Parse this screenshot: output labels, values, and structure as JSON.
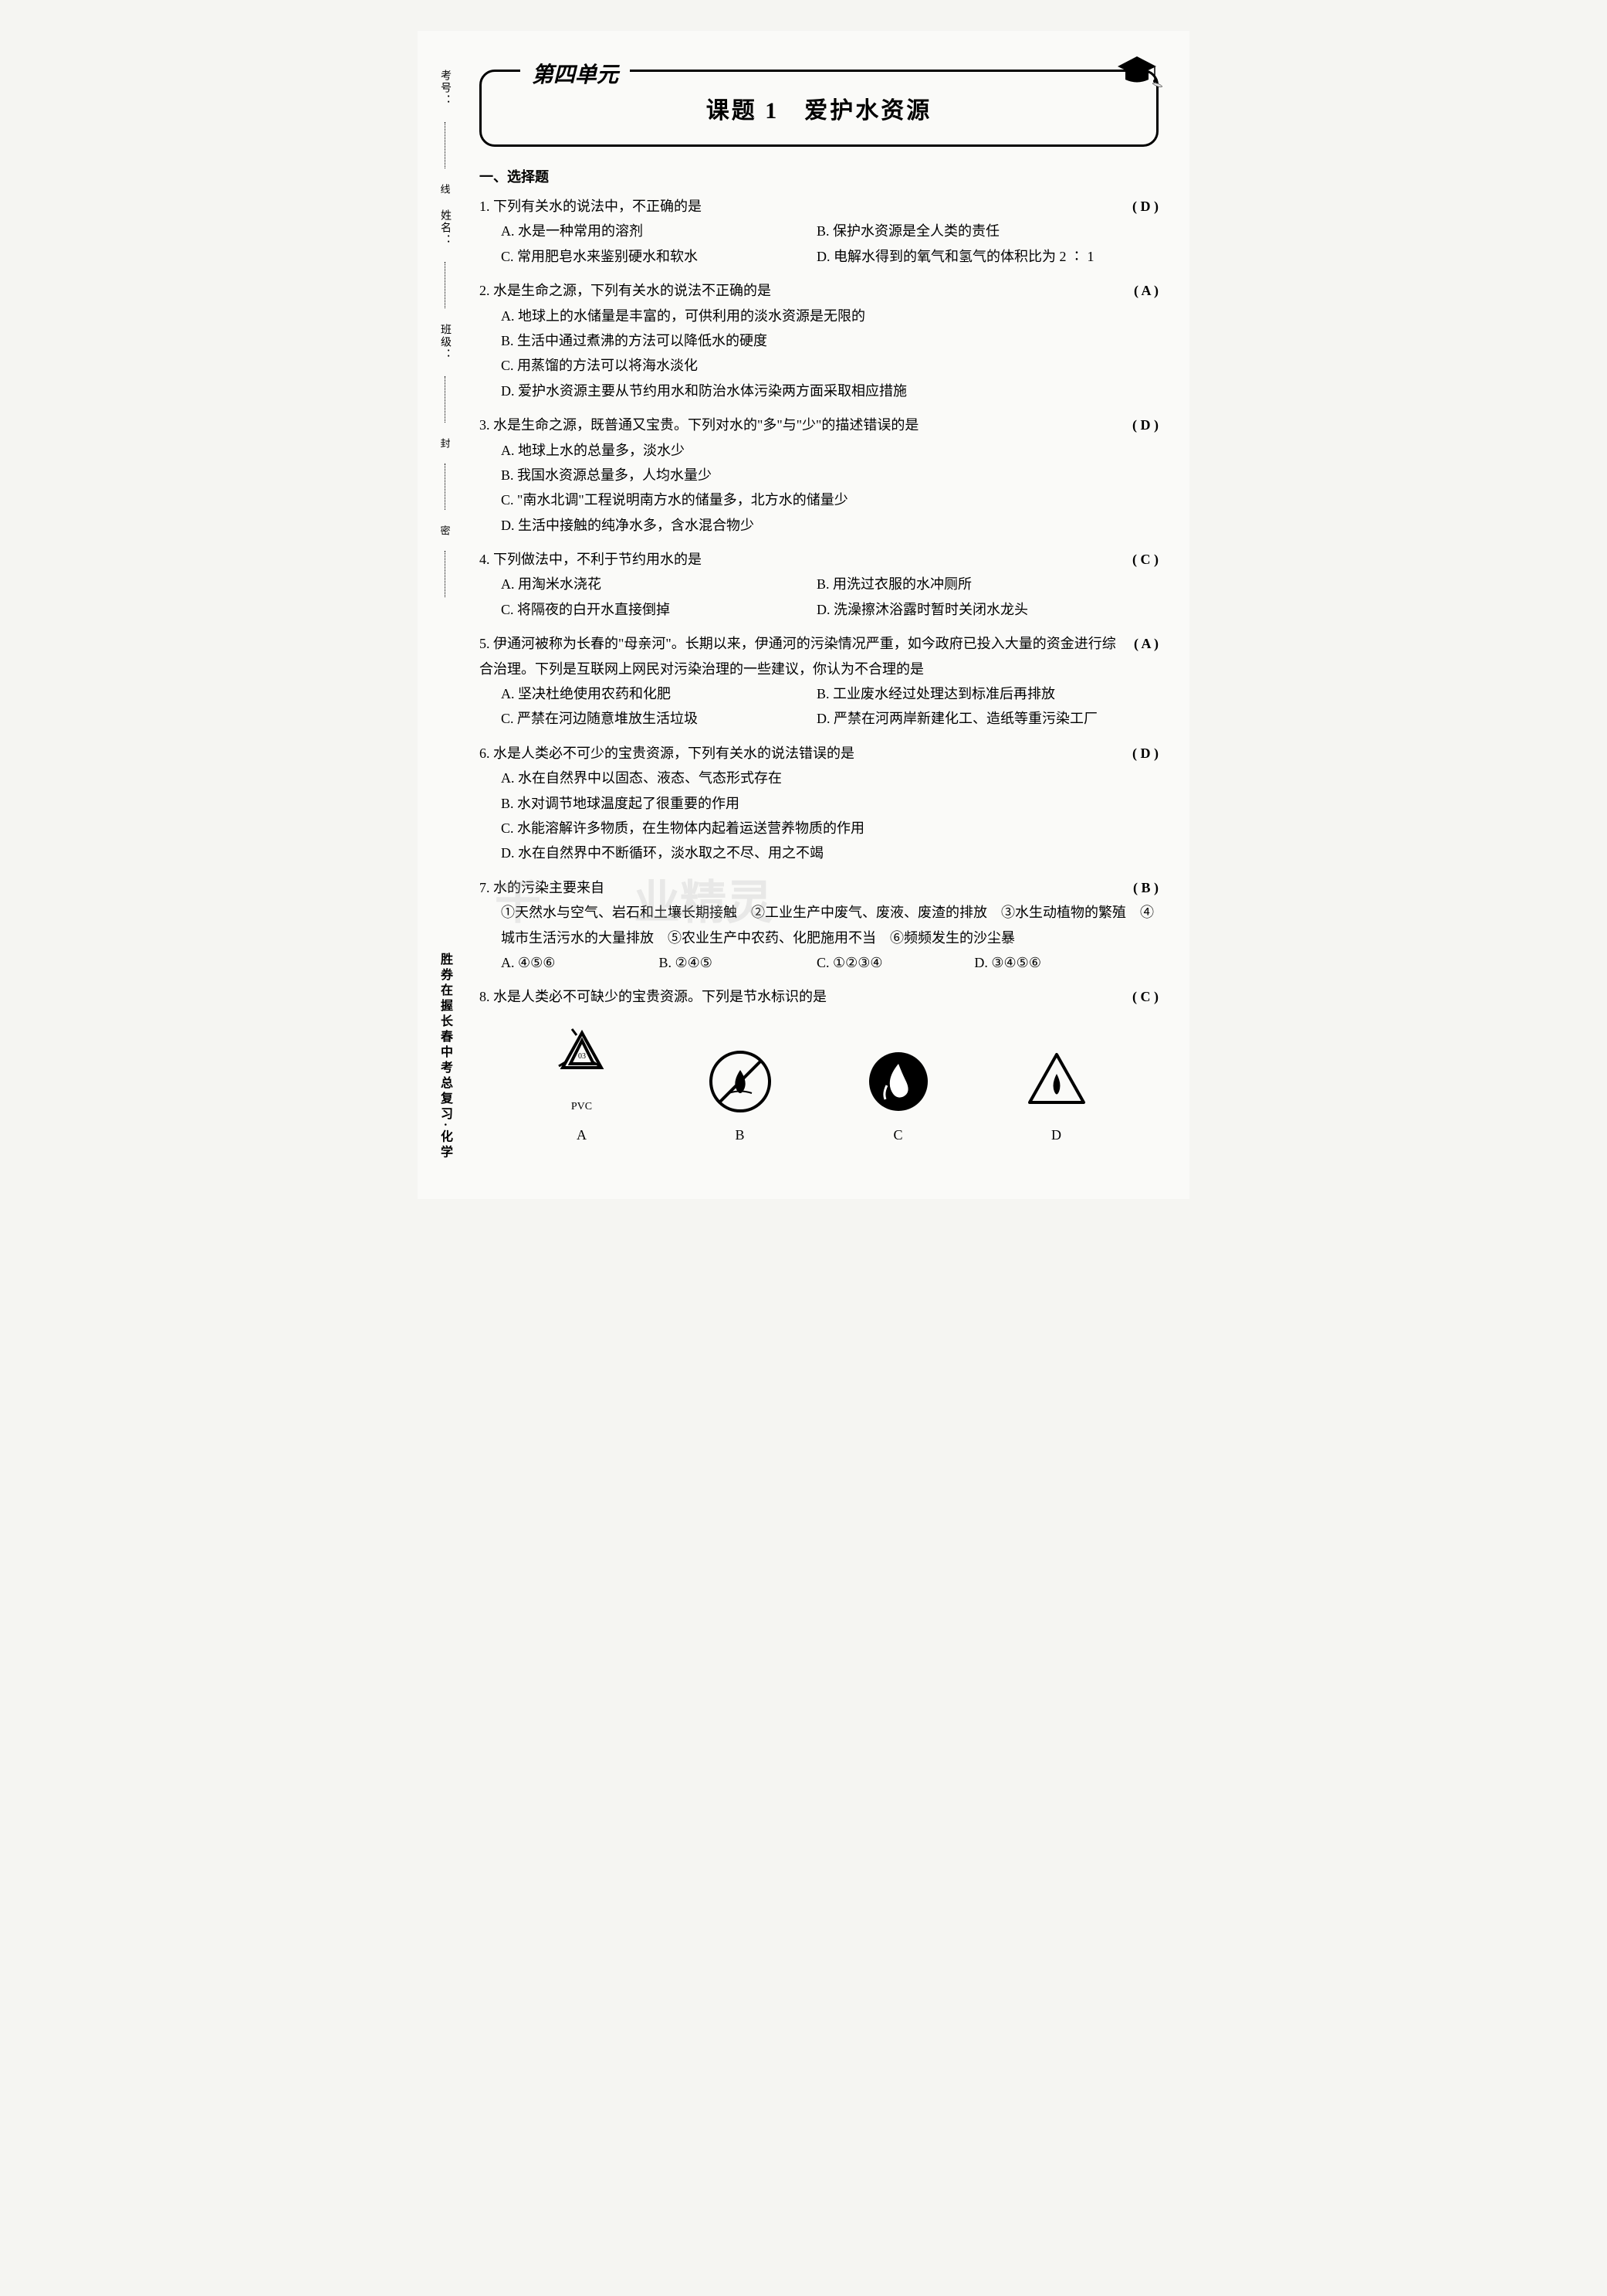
{
  "sidebar": {
    "fields": [
      {
        "label": "考号："
      },
      {
        "label": "姓名："
      },
      {
        "label": "班级："
      }
    ],
    "markers": [
      "线",
      "封",
      "密"
    ],
    "bottom_text": "胜券在握长春中考总复习·化学"
  },
  "header": {
    "unit_label": "第四单元",
    "topic": "课题 1　爱护水资源"
  },
  "section_title": "一、选择题",
  "questions": [
    {
      "num": "1.",
      "stem": "下列有关水的说法中，不正确的是",
      "answer": "D",
      "layout": "two-col",
      "options": [
        "A. 水是一种常用的溶剂",
        "B. 保护水资源是全人类的责任",
        "C. 常用肥皂水来鉴别硬水和软水",
        "D. 电解水得到的氧气和氢气的体积比为 2 ∶ 1"
      ]
    },
    {
      "num": "2.",
      "stem": "水是生命之源，下列有关水的说法不正确的是",
      "answer": "A",
      "layout": "one-col",
      "options": [
        "A. 地球上的水储量是丰富的，可供利用的淡水资源是无限的",
        "B. 生活中通过煮沸的方法可以降低水的硬度",
        "C. 用蒸馏的方法可以将海水淡化",
        "D. 爱护水资源主要从节约用水和防治水体污染两方面采取相应措施"
      ]
    },
    {
      "num": "3.",
      "stem": "水是生命之源，既普通又宝贵。下列对水的\"多\"与\"少\"的描述错误的是",
      "answer": "D",
      "layout": "one-col",
      "options": [
        "A. 地球上水的总量多，淡水少",
        "B. 我国水资源总量多，人均水量少",
        "C. \"南水北调\"工程说明南方水的储量多，北方水的储量少",
        "D. 生活中接触的纯净水多，含水混合物少"
      ]
    },
    {
      "num": "4.",
      "stem": "下列做法中，不利于节约用水的是",
      "answer": "C",
      "layout": "two-col",
      "options": [
        "A. 用淘米水浇花",
        "B. 用洗过衣服的水冲厕所",
        "C. 将隔夜的白开水直接倒掉",
        "D. 洗澡擦沐浴露时暂时关闭水龙头"
      ]
    },
    {
      "num": "5.",
      "stem": "伊通河被称为长春的\"母亲河\"。长期以来，伊通河的污染情况严重，如今政府已投入大量的资金进行综合治理。下列是互联网上网民对污染治理的一些建议，你认为不合理的是",
      "answer": "A",
      "layout": "two-col",
      "options": [
        "A. 坚决杜绝使用农药和化肥",
        "B. 工业废水经过处理达到标准后再排放",
        "C. 严禁在河边随意堆放生活垃圾",
        "D. 严禁在河两岸新建化工、造纸等重污染工厂"
      ]
    },
    {
      "num": "6.",
      "stem": "水是人类必不可少的宝贵资源，下列有关水的说法错误的是",
      "answer": "D",
      "layout": "one-col",
      "options": [
        "A. 水在自然界中以固态、液态、气态形式存在",
        "B. 水对调节地球温度起了很重要的作用",
        "C. 水能溶解许多物质，在生物体内起着运送营养物质的作用",
        "D. 水在自然界中不断循环，淡水取之不尽、用之不竭"
      ]
    },
    {
      "num": "7.",
      "stem": "水的污染主要来自",
      "answer": "B",
      "layout": "quarter",
      "extra": "①天然水与空气、岩石和土壤长期接触　②工业生产中废气、废液、废渣的排放　③水生动植物的繁殖　④城市生活污水的大量排放　⑤农业生产中农药、化肥施用不当　⑥频频发生的沙尘暴",
      "options": [
        "A. ④⑤⑥",
        "B. ②④⑤",
        "C. ①②③④",
        "D. ③④⑤⑥"
      ]
    },
    {
      "num": "8.",
      "stem": "水是人类必不可缺少的宝贵资源。下列是节水标识的是",
      "answer": "C",
      "layout": "images",
      "image_labels": [
        "A",
        "B",
        "C",
        "D"
      ],
      "image_sublabels": [
        "PVC",
        "",
        "",
        ""
      ]
    }
  ],
  "watermark": {
    "part1": "千",
    "part2": "业精灵"
  },
  "colors": {
    "page_bg": "#fafaf8",
    "text": "#000000",
    "border": "#000000"
  }
}
